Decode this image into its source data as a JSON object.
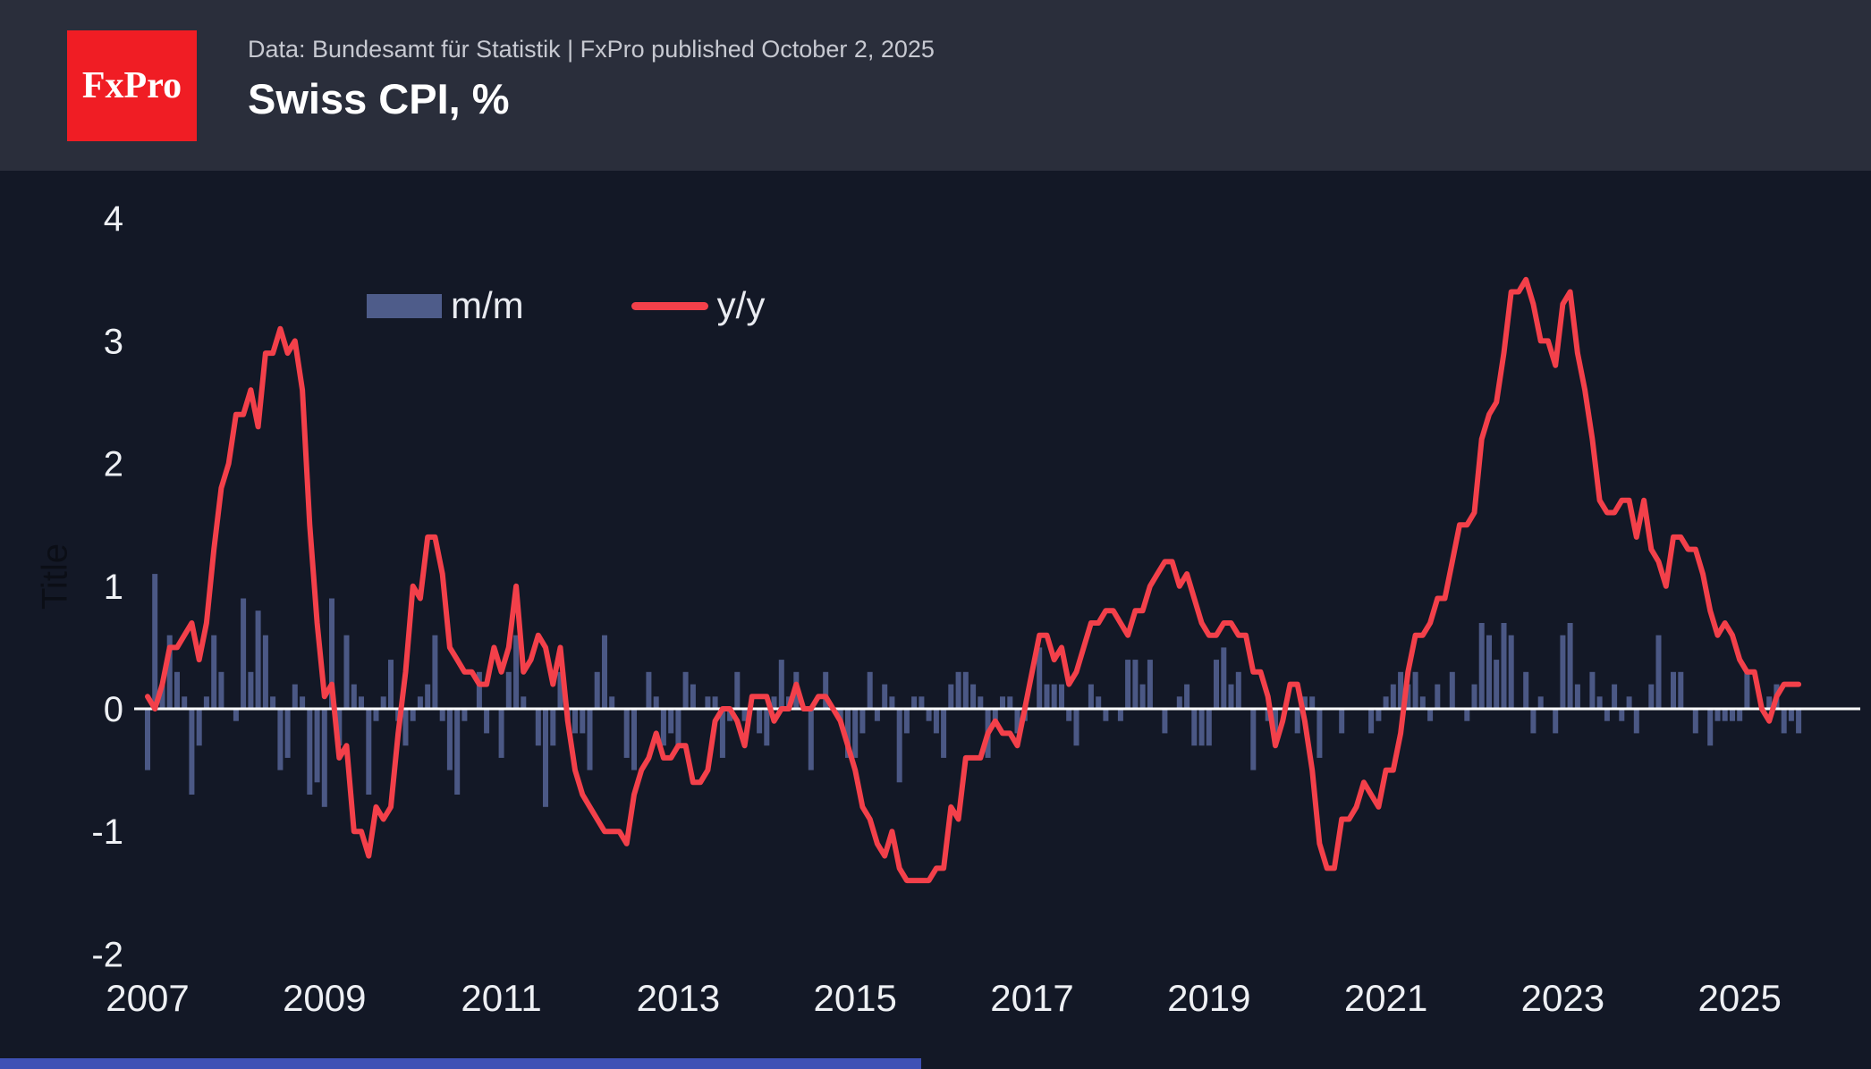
{
  "header": {
    "logo_text": "FxPro",
    "subtitle": "Data: Bundesamt für Statistik | FxPro published October 2, 2025",
    "title": "Swiss CPI, %"
  },
  "legend": {
    "mm_label": "m/m",
    "yy_label": "y/y"
  },
  "chart_data": {
    "type": "bar+line",
    "title": "Swiss CPI, %",
    "xlabel": "",
    "ylabel": "Title",
    "x_start": "2007-01",
    "x_end": "2025-09",
    "x_step": "1 month",
    "ylim": [
      -2.25,
      4.4
    ],
    "y_ticks": [
      4,
      3,
      2,
      1,
      0,
      -1,
      -2
    ],
    "x_ticks": [
      2007,
      2009,
      2011,
      2013,
      2015,
      2017,
      2019,
      2021,
      2023,
      2025
    ],
    "grid": false,
    "legend_position": "top-left-inside",
    "colors": {
      "background": "#131826",
      "header_background": "#2a2e3b",
      "bar": "#4e5c8a",
      "line": "#f3404a",
      "zero_line": "#ffffff",
      "text": "#eef0f4",
      "muted_text": "#c7c9d1",
      "logo_red": "#f01d24",
      "footer_accent": "#3f51b5"
    },
    "series": [
      {
        "name": "m/m",
        "type": "bar",
        "values": [
          -0.5,
          1.1,
          0.2,
          0.6,
          0.3,
          0.1,
          -0.7,
          -0.3,
          0.1,
          0.6,
          0.3,
          0.0,
          -0.1,
          0.9,
          0.3,
          0.8,
          0.6,
          0.1,
          -0.5,
          -0.4,
          0.2,
          0.1,
          -0.7,
          -0.6,
          -0.8,
          0.9,
          -0.3,
          0.6,
          0.2,
          0.1,
          -0.7,
          -0.1,
          0.1,
          0.4,
          -0.1,
          -0.3,
          -0.1,
          0.1,
          0.2,
          0.6,
          -0.1,
          -0.5,
          -0.7,
          -0.1,
          0.0,
          0.3,
          -0.2,
          0.0,
          -0.4,
          0.3,
          0.6,
          0.1,
          0.0,
          -0.3,
          -0.8,
          -0.3,
          0.3,
          -0.1,
          -0.2,
          -0.2,
          -0.5,
          0.3,
          0.6,
          0.1,
          0.0,
          -0.4,
          -0.5,
          0.0,
          0.3,
          0.1,
          -0.3,
          -0.2,
          -0.3,
          0.3,
          0.2,
          0.0,
          0.1,
          0.1,
          -0.4,
          -0.1,
          0.3,
          -0.1,
          0.0,
          -0.2,
          -0.3,
          0.1,
          0.4,
          0.1,
          0.3,
          0.0,
          -0.5,
          0.0,
          0.3,
          0.0,
          -0.1,
          -0.4,
          -0.4,
          -0.2,
          0.3,
          -0.1,
          0.2,
          0.1,
          -0.6,
          -0.2,
          0.1,
          0.1,
          -0.1,
          -0.2,
          -0.4,
          0.2,
          0.3,
          0.3,
          0.2,
          0.1,
          -0.4,
          -0.1,
          0.1,
          0.1,
          -0.2,
          -0.1,
          0.0,
          0.5,
          0.2,
          0.2,
          0.2,
          -0.1,
          -0.3,
          0.0,
          0.2,
          0.1,
          -0.1,
          0.0,
          -0.1,
          0.4,
          0.4,
          0.2,
          0.4,
          0.0,
          -0.2,
          0.0,
          0.1,
          0.2,
          -0.3,
          -0.3,
          -0.3,
          0.4,
          0.5,
          0.2,
          0.3,
          0.0,
          -0.5,
          0.0,
          -0.1,
          -0.2,
          0.0,
          0.0,
          -0.2,
          0.1,
          0.1,
          -0.4,
          0.0,
          0.0,
          -0.2,
          0.0,
          0.0,
          0.0,
          -0.2,
          -0.1,
          0.1,
          0.2,
          0.3,
          0.2,
          0.3,
          0.1,
          -0.1,
          0.2,
          0.0,
          0.3,
          0.0,
          -0.1,
          0.2,
          0.7,
          0.6,
          0.4,
          0.7,
          0.6,
          0.0,
          0.3,
          -0.2,
          0.1,
          0.0,
          -0.2,
          0.6,
          0.7,
          0.2,
          0.0,
          0.3,
          0.1,
          -0.1,
          0.2,
          -0.1,
          0.1,
          -0.2,
          0.0,
          0.2,
          0.6,
          0.0,
          0.3,
          0.3,
          0.0,
          -0.2,
          0.0,
          -0.3,
          -0.1,
          -0.1,
          -0.1,
          -0.1,
          0.3,
          0.0,
          0.0,
          0.1,
          0.2,
          -0.2,
          -0.1,
          -0.2
        ]
      },
      {
        "name": "y/y",
        "type": "line",
        "values": [
          0.1,
          0.0,
          0.2,
          0.5,
          0.5,
          0.6,
          0.7,
          0.4,
          0.7,
          1.3,
          1.8,
          2.0,
          2.4,
          2.4,
          2.6,
          2.3,
          2.9,
          2.9,
          3.1,
          2.9,
          3.0,
          2.6,
          1.5,
          0.7,
          0.1,
          0.2,
          -0.4,
          -0.3,
          -1.0,
          -1.0,
          -1.2,
          -0.8,
          -0.9,
          -0.8,
          -0.2,
          0.3,
          1.0,
          0.9,
          1.4,
          1.4,
          1.1,
          0.5,
          0.4,
          0.3,
          0.3,
          0.2,
          0.2,
          0.5,
          0.3,
          0.5,
          1.0,
          0.3,
          0.4,
          0.6,
          0.5,
          0.2,
          0.5,
          -0.1,
          -0.5,
          -0.7,
          -0.8,
          -0.9,
          -1.0,
          -1.0,
          -1.0,
          -1.1,
          -0.7,
          -0.5,
          -0.4,
          -0.2,
          -0.4,
          -0.4,
          -0.3,
          -0.3,
          -0.6,
          -0.6,
          -0.5,
          -0.1,
          0.0,
          0.0,
          -0.1,
          -0.3,
          0.1,
          0.1,
          0.1,
          -0.1,
          0.0,
          0.0,
          0.2,
          0.0,
          0.0,
          0.1,
          0.1,
          0.0,
          -0.1,
          -0.3,
          -0.5,
          -0.8,
          -0.9,
          -1.1,
          -1.2,
          -1.0,
          -1.3,
          -1.4,
          -1.4,
          -1.4,
          -1.4,
          -1.3,
          -1.3,
          -0.8,
          -0.9,
          -0.4,
          -0.4,
          -0.4,
          -0.2,
          -0.1,
          -0.2,
          -0.2,
          -0.3,
          0.0,
          0.3,
          0.6,
          0.6,
          0.4,
          0.5,
          0.2,
          0.3,
          0.5,
          0.7,
          0.7,
          0.8,
          0.8,
          0.7,
          0.6,
          0.8,
          0.8,
          1.0,
          1.1,
          1.2,
          1.2,
          1.0,
          1.1,
          0.9,
          0.7,
          0.6,
          0.6,
          0.7,
          0.7,
          0.6,
          0.6,
          0.3,
          0.3,
          0.1,
          -0.3,
          -0.1,
          0.2,
          0.2,
          -0.1,
          -0.5,
          -1.1,
          -1.3,
          -1.3,
          -0.9,
          -0.9,
          -0.8,
          -0.6,
          -0.7,
          -0.8,
          -0.5,
          -0.5,
          -0.2,
          0.3,
          0.6,
          0.6,
          0.7,
          0.9,
          0.9,
          1.2,
          1.5,
          1.5,
          1.6,
          2.2,
          2.4,
          2.5,
          2.9,
          3.4,
          3.4,
          3.5,
          3.3,
          3.0,
          3.0,
          2.8,
          3.3,
          3.4,
          2.9,
          2.6,
          2.2,
          1.7,
          1.6,
          1.6,
          1.7,
          1.7,
          1.4,
          1.7,
          1.3,
          1.2,
          1.0,
          1.4,
          1.4,
          1.3,
          1.3,
          1.1,
          0.8,
          0.6,
          0.7,
          0.6,
          0.4,
          0.3,
          0.3,
          0.0,
          -0.1,
          0.1,
          0.2,
          0.2,
          0.2
        ]
      }
    ]
  }
}
